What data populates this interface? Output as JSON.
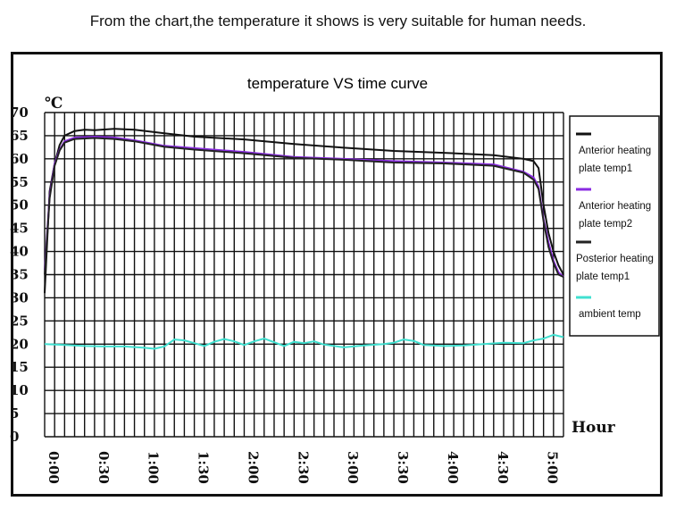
{
  "caption": "From the chart,the temperature it shows is very suitable for human needs.",
  "chart_data": {
    "type": "line",
    "title": "temperature VS time curve",
    "ylabel": "℃",
    "xlabel": "Hour",
    "ylim": [
      0,
      70
    ],
    "xlim": [
      0,
      5.2
    ],
    "yticks": [
      "0",
      "5",
      "10",
      "15",
      "20",
      "25",
      "30",
      "35",
      "40",
      "45",
      "50",
      "55",
      "60",
      "65",
      "70"
    ],
    "xticks": [
      {
        "label": "0:00",
        "value": 0
      },
      {
        "label": "0:30",
        "value": 0.5
      },
      {
        "label": "1:00",
        "value": 1
      },
      {
        "label": "1:30",
        "value": 1.5
      },
      {
        "label": "2:00",
        "value": 2
      },
      {
        "label": "2:30",
        "value": 2.5
      },
      {
        "label": "3:00",
        "value": 3
      },
      {
        "label": "3:30",
        "value": 3.5
      },
      {
        "label": "4:00",
        "value": 4
      },
      {
        "label": "4:30",
        "value": 4.5
      },
      {
        "label": "5:00",
        "value": 5
      }
    ],
    "grid": true,
    "legend_position": "right",
    "series": [
      {
        "name": "Anterior heating plate temp1",
        "color": "#111111",
        "x": [
          0,
          0.05,
          0.1,
          0.15,
          0.2,
          0.3,
          0.4,
          0.5,
          0.7,
          0.9,
          1.2,
          1.5,
          2.0,
          2.5,
          3.0,
          3.5,
          4.0,
          4.5,
          4.8,
          4.9,
          4.95,
          5.0,
          5.05,
          5.1,
          5.15,
          5.2
        ],
        "y": [
          31,
          53,
          59,
          63,
          65,
          66,
          66.3,
          66.2,
          66.5,
          66.3,
          65.5,
          64.8,
          64.2,
          63.2,
          62.4,
          61.7,
          61.3,
          60.8,
          60,
          59.5,
          58,
          50,
          44,
          40,
          37,
          35
        ]
      },
      {
        "name": "Anterior heating plate temp2",
        "color": "#8a2be2",
        "x": [
          0,
          0.05,
          0.1,
          0.15,
          0.2,
          0.3,
          0.5,
          0.7,
          0.9,
          1.2,
          1.5,
          2.0,
          2.5,
          3.0,
          3.5,
          4.0,
          4.5,
          4.8,
          4.9,
          4.95,
          5.0,
          5.05,
          5.1,
          5.15,
          5.2
        ],
        "y": [
          36,
          52,
          59,
          62,
          63.8,
          64.6,
          64.8,
          64.6,
          64,
          62.8,
          62.3,
          61.5,
          60.4,
          60,
          59.5,
          59.2,
          58.8,
          57.2,
          56,
          54,
          47,
          42,
          38,
          35.5,
          34.5
        ]
      },
      {
        "name": "Posterior heating plate temp1",
        "color": "#222222",
        "x": [
          0,
          0.05,
          0.1,
          0.15,
          0.2,
          0.3,
          0.5,
          0.7,
          0.9,
          1.2,
          1.5,
          2.0,
          2.5,
          3.0,
          3.5,
          4.0,
          4.5,
          4.8,
          4.9,
          4.95,
          5.0,
          5.05,
          5.1,
          5.15,
          5.2
        ],
        "y": [
          35,
          51.5,
          58.5,
          61.8,
          63.5,
          64.3,
          64.5,
          64.3,
          63.8,
          62.6,
          62,
          61.2,
          60.2,
          59.8,
          59.2,
          59,
          58.5,
          57,
          55.5,
          53.5,
          46.5,
          41,
          37.5,
          35,
          34.5
        ]
      },
      {
        "name": "ambient temp",
        "color": "#40e0d0",
        "x": [
          0,
          0.2,
          0.4,
          0.6,
          0.8,
          1.0,
          1.1,
          1.2,
          1.3,
          1.4,
          1.5,
          1.6,
          1.7,
          1.8,
          1.9,
          2.0,
          2.1,
          2.2,
          2.3,
          2.4,
          2.5,
          2.6,
          2.7,
          2.8,
          3.0,
          3.2,
          3.4,
          3.5,
          3.6,
          3.7,
          3.8,
          4.0,
          4.2,
          4.4,
          4.6,
          4.8,
          4.9,
          5.0,
          5.1,
          5.2
        ],
        "y": [
          20,
          19.8,
          19.6,
          19.5,
          19.5,
          19.2,
          19,
          19.5,
          21,
          20.8,
          20.2,
          19.6,
          20.5,
          21.1,
          20.6,
          19.8,
          20.6,
          21.2,
          20.4,
          19.6,
          20.5,
          20.2,
          20.6,
          19.9,
          19.3,
          19.7,
          20,
          20.3,
          21,
          20.7,
          19.8,
          19.6,
          19.7,
          20,
          20.3,
          20.2,
          20.8,
          21.2,
          22,
          21.5
        ]
      }
    ]
  }
}
